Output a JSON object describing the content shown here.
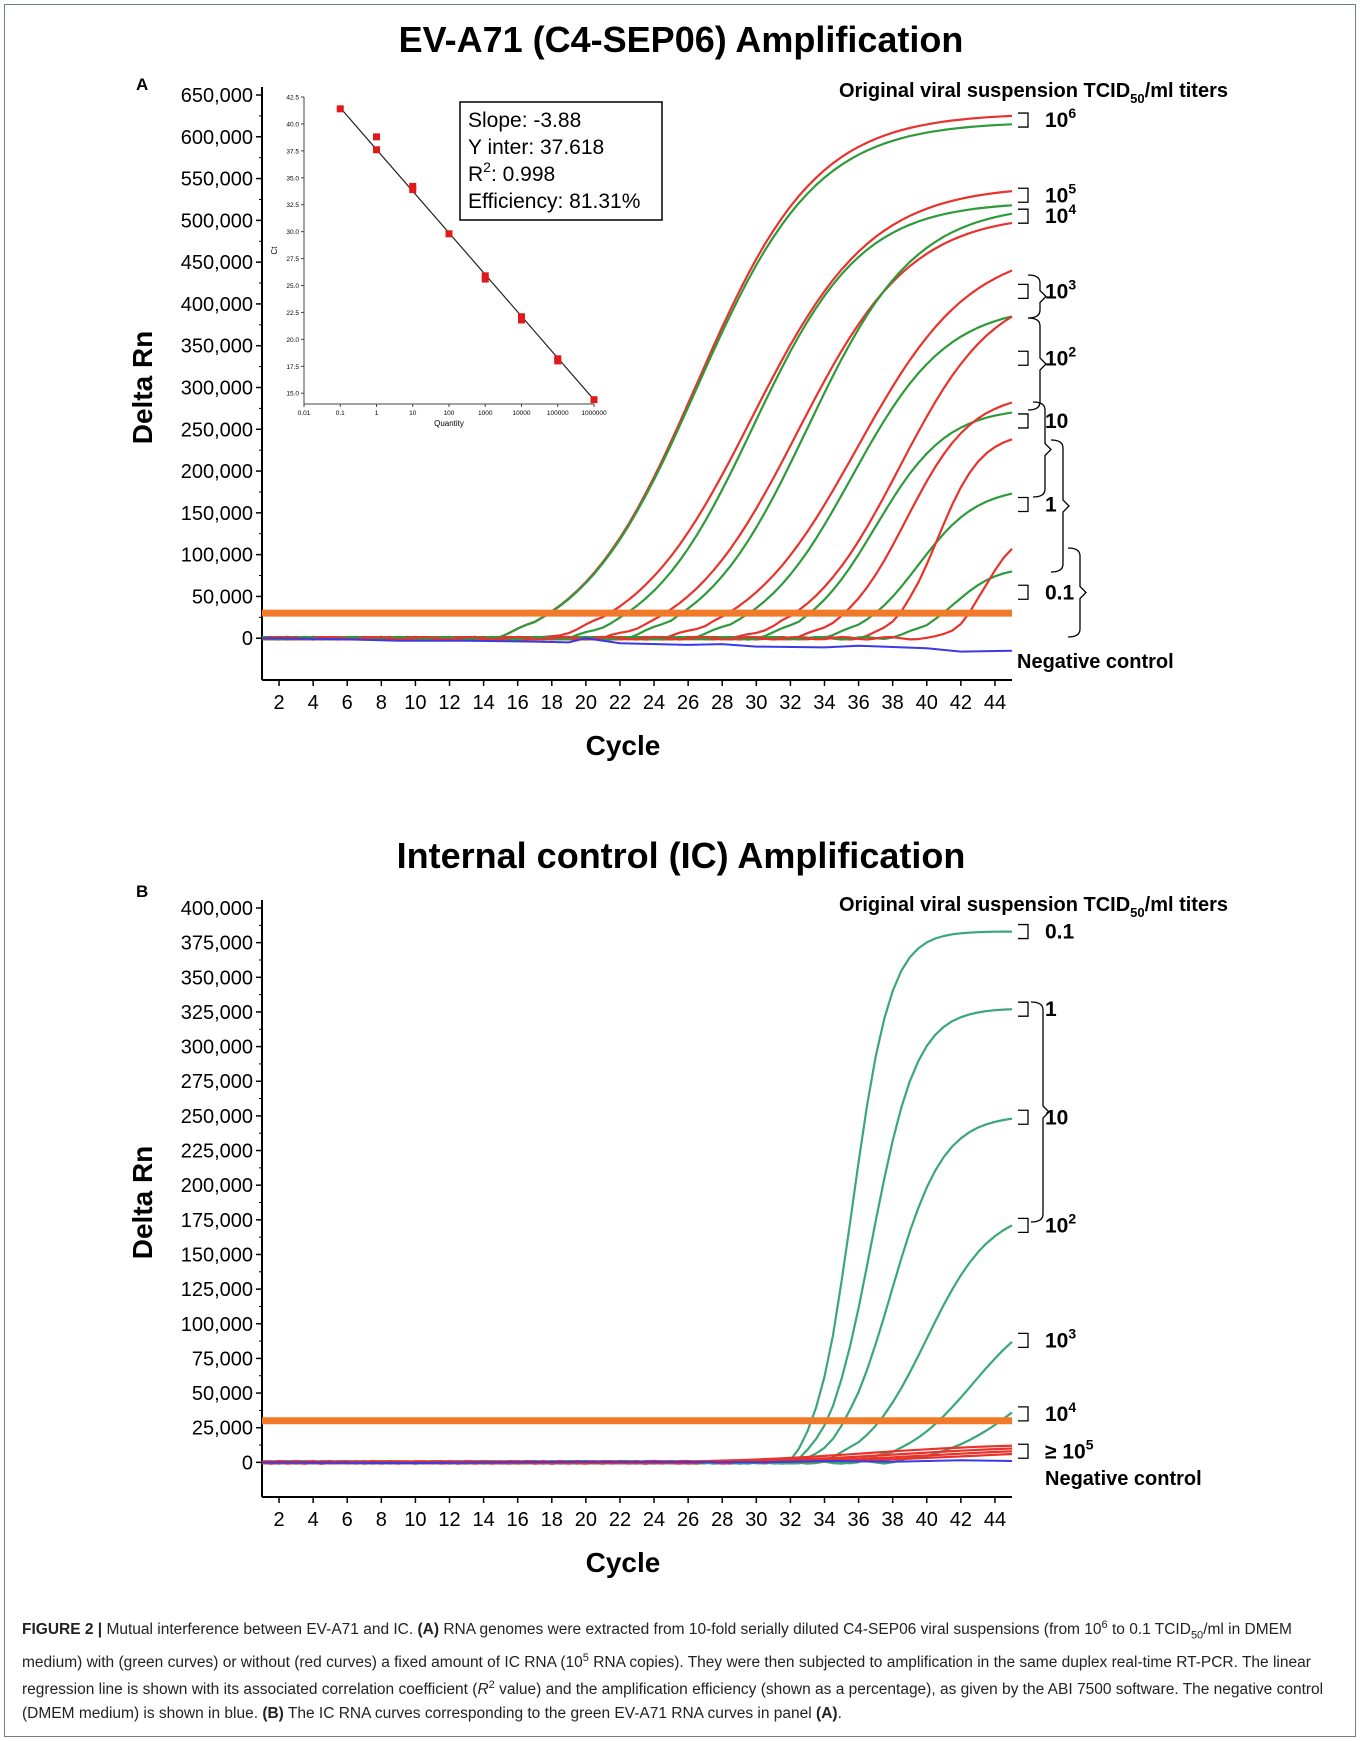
{
  "chart_data": [
    {
      "type": "line",
      "panel_label": "A",
      "title": "EV-A71 (C4-SEP06) Amplification",
      "xlabel": "Cycle",
      "ylabel": "Delta Rn",
      "xlim": [
        1,
        45
      ],
      "ylim": [
        -50000,
        650000
      ],
      "x_ticks": [
        2,
        4,
        6,
        8,
        10,
        12,
        14,
        16,
        18,
        20,
        22,
        24,
        26,
        28,
        30,
        32,
        34,
        36,
        38,
        40,
        42,
        44
      ],
      "y_ticks": [
        0,
        50000,
        100000,
        150000,
        200000,
        250000,
        300000,
        350000,
        400000,
        450000,
        500000,
        550000,
        600000,
        650000
      ],
      "y_tick_labels": [
        "0",
        "50,000",
        "100,000",
        "150,000",
        "200,000",
        "250,000",
        "300,000",
        "350,000",
        "400,000",
        "450,000",
        "500,000",
        "550,000",
        "600,000",
        "650,000"
      ],
      "threshold": 30000,
      "legend_header": {
        "pre": "Original viral suspension TCID",
        "sub": "50",
        "post": "/ml titers"
      },
      "dilution_labels": [
        {
          "base": "10",
          "exp": "6",
          "y": 620000
        },
        {
          "base": "10",
          "exp": "5",
          "y": 530000
        },
        {
          "base": "10",
          "exp": "4",
          "y": 505000
        },
        {
          "base": "10",
          "exp": "3",
          "y": 415000
        },
        {
          "base": "10",
          "exp": "2",
          "y": 335000
        },
        {
          "base": "10",
          "exp": "",
          "y": 260000
        },
        {
          "base": "1",
          "exp": "",
          "y": 160000
        },
        {
          "base": "0.1",
          "exp": "",
          "y": 55000
        }
      ],
      "negative_control_label": "Negative control",
      "series": [
        {
          "color": "red",
          "onset": 14.5,
          "end": 625000,
          "tau": 10
        },
        {
          "color": "green",
          "onset": 14.5,
          "end": 615000,
          "tau": 10
        },
        {
          "color": "red",
          "onset": 17.7,
          "end": 535000,
          "tau": 10
        },
        {
          "color": "green",
          "onset": 19.0,
          "end": 518000,
          "tau": 9
        },
        {
          "color": "red",
          "onset": 21.0,
          "end": 497000,
          "tau": 9.5
        },
        {
          "color": "green",
          "onset": 22.2,
          "end": 508000,
          "tau": 9
        },
        {
          "color": "red",
          "onset": 24.5,
          "end": 440000,
          "tau": 9.5
        },
        {
          "color": "green",
          "onset": 26.0,
          "end": 385000,
          "tau": 8
        },
        {
          "color": "red",
          "onset": 28.8,
          "end": 385000,
          "tau": 8
        },
        {
          "color": "green",
          "onset": 29.8,
          "end": 270000,
          "tau": 6
        },
        {
          "color": "red",
          "onset": 32.2,
          "end": 282000,
          "tau": 5.5
        },
        {
          "color": "green",
          "onset": 33.5,
          "end": 173000,
          "tau": 5
        },
        {
          "color": "red",
          "onset": 36.2,
          "end": 238000,
          "tau": 3.7
        },
        {
          "color": "green",
          "onset": 37.3,
          "end": 80000,
          "tau": 3.6
        },
        {
          "color": "red",
          "onset": 40.3,
          "end": 107000,
          "tau": 2.6
        }
      ],
      "negative_control": {
        "color": "blue",
        "x": [
          1,
          5,
          9,
          13,
          17,
          19,
          20,
          22,
          26,
          28,
          30,
          34,
          36,
          40,
          42,
          45
        ],
        "y": [
          0,
          -1000,
          -3000,
          -3000,
          -4000,
          -5000,
          0,
          -6000,
          -8000,
          -7000,
          -10000,
          -11000,
          -9000,
          -12000,
          -16000,
          -15000
        ]
      },
      "inset": {
        "type": "scatter",
        "xscale": "log",
        "xlabel": "Quantity",
        "ylabel": "Ct",
        "x_tick_labels": [
          "0.01",
          "0.1",
          "1",
          "10",
          "100",
          "1000",
          "10000",
          "100000",
          "1000000"
        ],
        "y_tick_labels": [
          "15.0",
          "17.5",
          "20.0",
          "22.5",
          "25.0",
          "27.5",
          "30.0",
          "32.5",
          "35.0",
          "37.5",
          "40.0",
          "42.5"
        ],
        "ylim": [
          14,
          42.5
        ],
        "points": [
          {
            "x": 0.1,
            "y": 41.4
          },
          {
            "x": 1,
            "y": 38.8
          },
          {
            "x": 1,
            "y": 37.6
          },
          {
            "x": 10,
            "y": 34.2
          },
          {
            "x": 10,
            "y": 33.9
          },
          {
            "x": 100,
            "y": 29.8
          },
          {
            "x": 1000,
            "y": 25.9
          },
          {
            "x": 1000,
            "y": 25.6
          },
          {
            "x": 10000,
            "y": 22.1
          },
          {
            "x": 10000,
            "y": 21.8
          },
          {
            "x": 100000,
            "y": 18.2
          },
          {
            "x": 100000,
            "y": 18.0
          },
          {
            "x": 1000000,
            "y": 14.4
          }
        ],
        "regression": {
          "x": [
            0.1,
            1000000
          ],
          "y": [
            41.5,
            14.4
          ]
        },
        "stats": {
          "slope": "Slope: -3.88",
          "intercept": "Y inter: 37.618",
          "r2_pre": "R",
          "r2_sup": "2",
          "r2_post": ": 0.998",
          "efficiency": "Efficiency: 81.31%"
        }
      }
    },
    {
      "type": "line",
      "panel_label": "B",
      "title": "Internal control (IC) Amplification",
      "xlabel": "Cycle",
      "ylabel": "Delta Rn",
      "xlim": [
        1,
        45
      ],
      "ylim": [
        -25000,
        400000
      ],
      "x_ticks": [
        2,
        4,
        6,
        8,
        10,
        12,
        14,
        16,
        18,
        20,
        22,
        24,
        26,
        28,
        30,
        32,
        34,
        36,
        38,
        40,
        42,
        44
      ],
      "y_ticks": [
        0,
        25000,
        50000,
        75000,
        100000,
        125000,
        150000,
        175000,
        200000,
        225000,
        250000,
        275000,
        300000,
        325000,
        350000,
        375000,
        400000
      ],
      "y_tick_labels": [
        "0",
        "25,000",
        "50,000",
        "75,000",
        "100,000",
        "125,000",
        "150,000",
        "175,000",
        "200,000",
        "225,000",
        "250,000",
        "275,000",
        "300,000",
        "325,000",
        "350,000",
        "375,000",
        "400,000"
      ],
      "threshold": 30000,
      "legend_header": {
        "pre": "Original viral suspension TCID",
        "sub": "50",
        "post": "/ml titers"
      },
      "dilution_labels": [
        {
          "base": "0.1",
          "exp": "",
          "y": 383000
        },
        {
          "base": "1",
          "exp": "",
          "y": 327000
        },
        {
          "base": "10",
          "exp": "",
          "y": 249000
        },
        {
          "base": "10",
          "exp": "2",
          "y": 171000
        },
        {
          "base": "10",
          "exp": "3",
          "y": 88000
        },
        {
          "base": "10",
          "exp": "4",
          "y": 35000
        },
        {
          "base": "≥ 10",
          "exp": "5",
          "y": 8000
        }
      ],
      "negative_control_label": "Negative control",
      "series": [
        {
          "color": "green",
          "onset": 31.8,
          "end": 383000,
          "tau": 3.2
        },
        {
          "color": "green",
          "onset": 32.2,
          "end": 327000,
          "tau": 3.8
        },
        {
          "color": "green",
          "onset": 32.6,
          "end": 248000,
          "tau": 4.4
        },
        {
          "color": "green",
          "onset": 33.5,
          "end": 171000,
          "tau": 5.4
        },
        {
          "color": "green",
          "onset": 35.5,
          "end": 87000,
          "tau": 6.0
        },
        {
          "color": "green",
          "onset": 37.5,
          "end": 36000,
          "tau": 7.0
        },
        {
          "color": "red",
          "onset": 22,
          "end": 12000,
          "tau": 12
        },
        {
          "color": "red",
          "onset": 24,
          "end": 10000,
          "tau": 12
        },
        {
          "color": "red",
          "onset": 26,
          "end": 8000,
          "tau": 12
        },
        {
          "color": "red",
          "onset": 28,
          "end": 6000,
          "tau": 12
        }
      ],
      "negative_control": {
        "color": "blue",
        "x": [
          1,
          10,
          20,
          30,
          34,
          38,
          42,
          45
        ],
        "y": [
          0,
          -500,
          500,
          0,
          1000,
          500,
          1500,
          1000
        ]
      }
    }
  ],
  "caption": {
    "fig_label": "FIGURE 2 |",
    "parts": [
      {
        "t": " Mutual interference between EV-A71 and IC. "
      },
      {
        "t": "(A)",
        "b": true
      },
      {
        "t": " RNA genomes were extracted from 10-fold serially diluted C4-SEP06 viral suspensions (from 10"
      },
      {
        "t": "6",
        "sup": true
      },
      {
        "t": " to 0.1 TCID"
      },
      {
        "t": "50",
        "sub": true
      },
      {
        "t": "/ml in DMEM medium) with (green curves) or without (red curves) a fixed amount of IC RNA (10"
      },
      {
        "t": "5",
        "sup": true
      },
      {
        "t": " RNA copies). They were then subjected to amplification in the same duplex real-time RT-PCR. The linear regression line is shown with its associated correlation coefficient ("
      },
      {
        "t": "R",
        "i": true
      },
      {
        "t": "2",
        "sup": true
      },
      {
        "t": " value) and the amplification efficiency (shown as a percentage), as given by the ABI 7500 software. The negative control (DMEM medium) is shown in blue. "
      },
      {
        "t": "(B)",
        "b": true
      },
      {
        "t": " The IC RNA curves corresponding to the green EV-A71 RNA curves in panel "
      },
      {
        "t": "(A)",
        "b": true
      },
      {
        "t": "."
      }
    ]
  },
  "colors": {
    "red": "#e8322c",
    "green": "#2e9a3b",
    "teal": "#3aa876",
    "blue": "#3a3ae6",
    "threshold": "#f07a2a",
    "frame": "#6b7d8c"
  }
}
